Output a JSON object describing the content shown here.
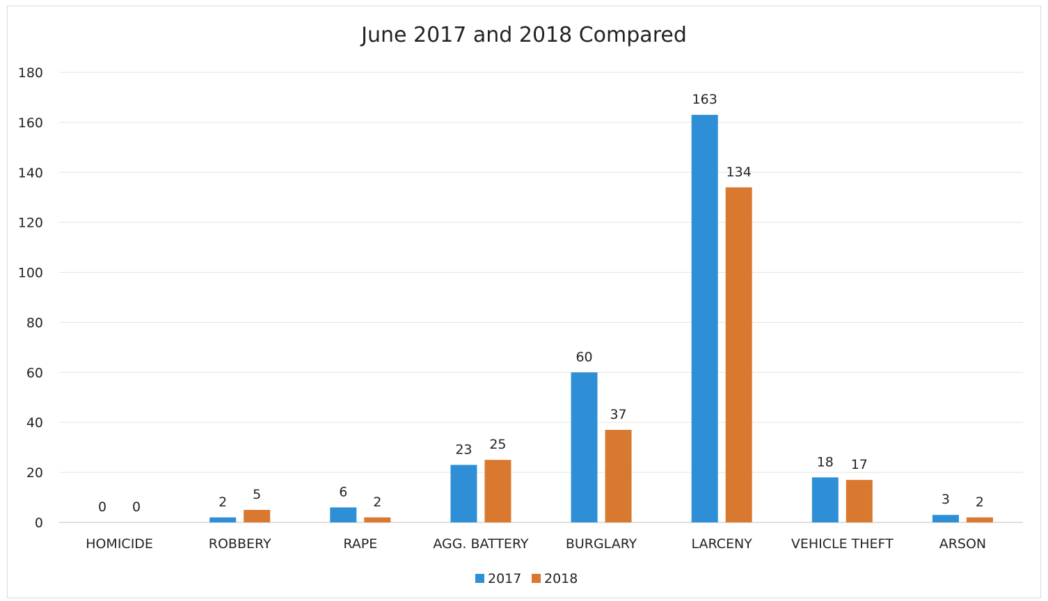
{
  "chart_data": {
    "type": "bar",
    "title": "June 2017 and 2018 Compared",
    "categories": [
      "HOMICIDE",
      "ROBBERY",
      "RAPE",
      "AGG. BATTERY",
      "BURGLARY",
      "LARCENY",
      "VEHICLE THEFT",
      "ARSON"
    ],
    "series": [
      {
        "name": "2017",
        "color": "#2e8fd6",
        "values": [
          0,
          2,
          6,
          23,
          60,
          163,
          18,
          3
        ]
      },
      {
        "name": "2018",
        "color": "#d9782f",
        "values": [
          0,
          5,
          2,
          25,
          37,
          134,
          17,
          2
        ]
      }
    ],
    "ylim": [
      0,
      180
    ],
    "yticks": [
      0,
      20,
      40,
      60,
      80,
      100,
      120,
      140,
      160,
      180
    ],
    "grid": true,
    "legend": "bottom",
    "data_labels": true
  }
}
